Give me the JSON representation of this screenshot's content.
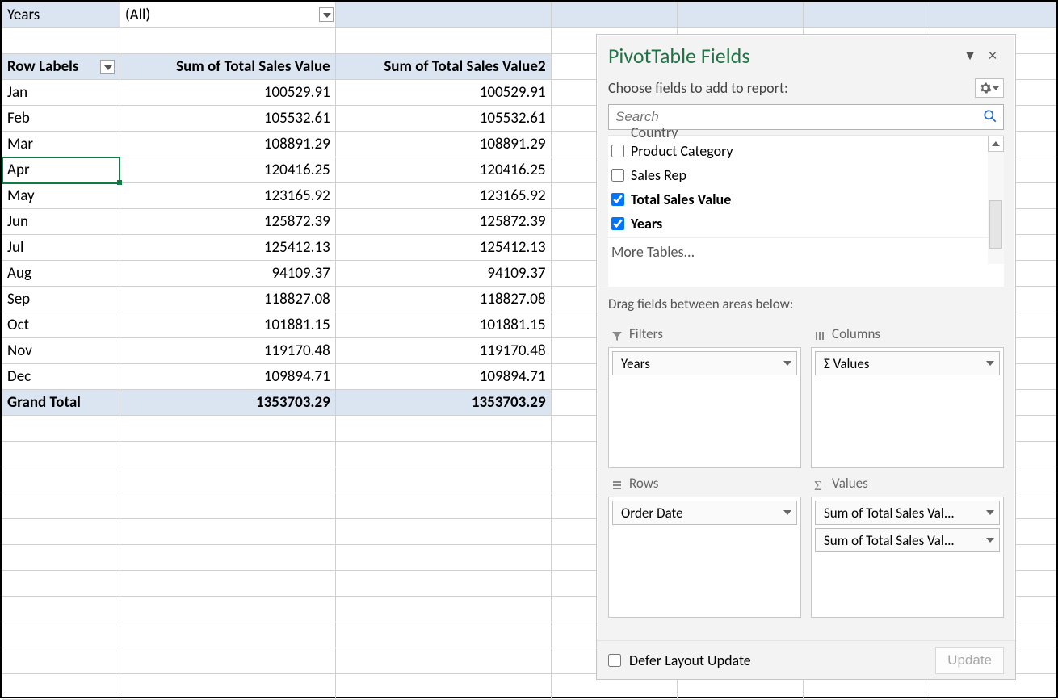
{
  "colors": {
    "header_bg": "#dbe5f1",
    "excel_green": "#217346",
    "selection_green": "#107c41",
    "grid_border": "#d0d0d0",
    "pane_bg": "#f3f3f3"
  },
  "pivot": {
    "filter_field": "Years",
    "filter_value": "(All)",
    "columns": [
      "Row Labels",
      "Sum of Total Sales Value",
      "Sum of Total Sales Value2"
    ],
    "rows": [
      {
        "label": "Jan",
        "v1": "100529.91",
        "v2": "100529.91"
      },
      {
        "label": "Feb",
        "v1": "105532.61",
        "v2": "105532.61"
      },
      {
        "label": "Mar",
        "v1": "108891.29",
        "v2": "108891.29"
      },
      {
        "label": "Apr",
        "v1": "120416.25",
        "v2": "120416.25",
        "selected": true
      },
      {
        "label": "May",
        "v1": "123165.92",
        "v2": "123165.92"
      },
      {
        "label": "Jun",
        "v1": "125872.39",
        "v2": "125872.39"
      },
      {
        "label": "Jul",
        "v1": "125412.13",
        "v2": "125412.13"
      },
      {
        "label": "Aug",
        "v1": "94109.37",
        "v2": "94109.37"
      },
      {
        "label": "Sep",
        "v1": "118827.08",
        "v2": "118827.08"
      },
      {
        "label": "Oct",
        "v1": "101881.15",
        "v2": "101881.15"
      },
      {
        "label": "Nov",
        "v1": "119170.48",
        "v2": "119170.48"
      },
      {
        "label": "Dec",
        "v1": "109894.71",
        "v2": "109894.71"
      }
    ],
    "grand_total": {
      "label": "Grand Total",
      "v1": "1353703.29",
      "v2": "1353703.29"
    }
  },
  "pane": {
    "title": "PivotTable Fields",
    "subtitle": "Choose fields to add to report:",
    "search_placeholder": "Search",
    "fields_clipped": "Country",
    "fields": [
      {
        "label": "Product Category",
        "checked": false,
        "bold": false
      },
      {
        "label": "Sales Rep",
        "checked": false,
        "bold": false
      },
      {
        "label": "Total Sales Value",
        "checked": true,
        "bold": true
      },
      {
        "label": "Years",
        "checked": true,
        "bold": true
      }
    ],
    "more_tables": "More Tables...",
    "drag_label": "Drag fields between areas below:",
    "areas": {
      "filters": {
        "title": "Filters",
        "pills": [
          "Years"
        ]
      },
      "columns": {
        "title": "Columns",
        "pills": [
          "Σ Values"
        ]
      },
      "rows": {
        "title": "Rows",
        "pills": [
          "Order Date"
        ]
      },
      "values": {
        "title": "Values",
        "pills": [
          "Sum of Total Sales Val...",
          "Sum of Total Sales Val..."
        ]
      }
    },
    "defer_label": "Defer Layout Update",
    "update_label": "Update"
  }
}
